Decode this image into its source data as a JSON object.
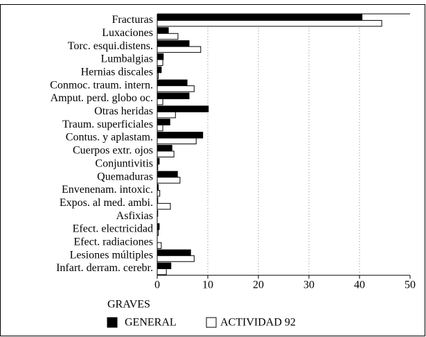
{
  "chart_data": {
    "type": "barh",
    "legend_title": "GRAVES",
    "categories": [
      "Fracturas",
      "Luxaciones",
      "Torc. esqui.distens.",
      "Lumbalgias",
      "Hernias discales",
      "Conmoc. traum. intern.",
      "Amput. perd. globo oc.",
      "Otras heridas",
      "Traum. superficiales",
      "Contus. y aplastam.",
      "Cuerpos extr. ojos",
      "Conjuntivitis",
      "Quemaduras",
      "Envenenam. intoxic.",
      "Expos. al med. ambi.",
      "Asfixias",
      "Efect. electricidad",
      "Efect. radiaciones",
      "Lesiones múltiples",
      "Infart. derram. cerebr."
    ],
    "series": [
      {
        "name": "GENERAL",
        "color": "#000000",
        "values": [
          40.5,
          2.2,
          6.3,
          1.2,
          0.8,
          5.9,
          6.3,
          10.1,
          2.5,
          9.0,
          2.9,
          0.4,
          4.0,
          0.2,
          0.1,
          0.1,
          0.4,
          0,
          6.6,
          2.7
        ]
      },
      {
        "name": "ACTIVIDAD 92",
        "color": "#ffffff",
        "values": [
          44.4,
          4.1,
          8.6,
          1.1,
          0.2,
          7.3,
          1.1,
          3.6,
          1.1,
          7.7,
          3.3,
          0.1,
          4.5,
          0.5,
          2.6,
          0,
          0.2,
          0.8,
          7.3,
          1.8
        ]
      }
    ],
    "xlim": [
      0,
      50
    ],
    "xticks": [
      0,
      10,
      20,
      30,
      40,
      50
    ],
    "grid": true
  }
}
